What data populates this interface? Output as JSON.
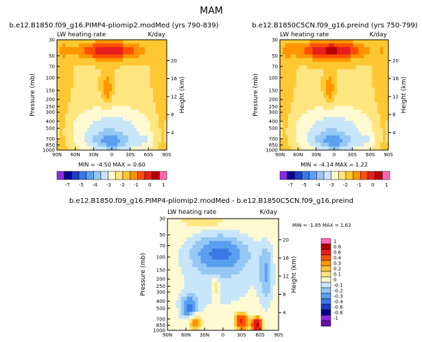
{
  "figure_title": "MAM",
  "chart_data": [
    {
      "type": "heatmap",
      "title": "b.e12.B1850.f09_g16.PIMP4-pliomip2.modMed (yrs 790-839)",
      "left_string": "LW heating rate",
      "units": "K/day",
      "ylabel": "Pressure (mb)",
      "ylabel_right": "Height (km)",
      "xticks": [
        "90N",
        "60N",
        "30N",
        "0",
        "30S",
        "60S",
        "90S"
      ],
      "yticks": [
        "30",
        "50",
        "70",
        "100",
        "150",
        "200",
        "250",
        "300",
        "400",
        "500",
        "700",
        "850",
        "1000"
      ],
      "height_ticks": [
        "20",
        "16",
        "12",
        "8",
        "4"
      ],
      "ylim": [
        1000,
        30
      ],
      "y_scale": "log",
      "min_label": "MIN =",
      "min_value": "-4.50",
      "max_label": "MAX =",
      "max_value": "0.60",
      "colorbar_levels": [
        "-7",
        "-5",
        "-4",
        "-3",
        "-2",
        "-1",
        "0",
        "1"
      ],
      "colorbar_colors": [
        "#8a2be2",
        "#00008b",
        "#1e3cc8",
        "#3c78e6",
        "#5aa0f0",
        "#96c8f5",
        "#c8e6fa",
        "#fffad2",
        "#ffe680",
        "#ffc832",
        "#ff9600",
        "#ff5000",
        "#e61e1e",
        "#b40000",
        "#ff69b4"
      ]
    },
    {
      "type": "heatmap",
      "title": "b.e12.B1850C5CN.f09_g16.preind (yrs 750-799)",
      "left_string": "LW heating rate",
      "units": "K/day",
      "ylabel": "Pressure (mb)",
      "ylabel_right": "Height (km)",
      "xticks": [
        "90N",
        "60N",
        "30N",
        "0",
        "30S",
        "60S",
        "90S"
      ],
      "yticks": [
        "30",
        "50",
        "70",
        "100",
        "150",
        "200",
        "250",
        "300",
        "400",
        "500",
        "700",
        "850",
        "1000"
      ],
      "height_ticks": [
        "20",
        "16",
        "12",
        "8",
        "4"
      ],
      "ylim": [
        1000,
        30
      ],
      "y_scale": "log",
      "min_label": "MIN =",
      "min_value": "-4.14",
      "max_label": "MAX =",
      "max_value": "1.22",
      "colorbar_levels": [
        "-7",
        "-5",
        "-4",
        "-3",
        "-2",
        "-1",
        "0",
        "1"
      ],
      "colorbar_colors": [
        "#8a2be2",
        "#00008b",
        "#1e3cc8",
        "#3c78e6",
        "#5aa0f0",
        "#96c8f5",
        "#c8e6fa",
        "#fffad2",
        "#ffe680",
        "#ffc832",
        "#ff9600",
        "#ff5000",
        "#e61e1e",
        "#b40000",
        "#ff69b4"
      ]
    },
    {
      "type": "heatmap",
      "title": "b.e12.B1850.f09_g16.PIMP4-pliomip2.modMed - b.e12.B1850C5CN.f09_g16.preind",
      "left_string": "LW heating rate",
      "units": "K/day",
      "ylabel": "Pressure (mb)",
      "ylabel_right": "Height (km)",
      "xticks": [
        "90N",
        "60N",
        "30N",
        "0",
        "30S",
        "60S",
        "90S"
      ],
      "yticks": [
        "30",
        "50",
        "70",
        "100",
        "150",
        "200",
        "250",
        "300",
        "400",
        "500",
        "700",
        "850",
        "1000"
      ],
      "height_ticks": [
        "20",
        "16",
        "12",
        "8",
        "4"
      ],
      "ylim": [
        1000,
        30
      ],
      "y_scale": "log",
      "min_label": "MIN =",
      "min_value": "-1.85",
      "max_label": "MAX =",
      "max_value": "1.63",
      "colorbar_levels": [
        "1",
        "0.8",
        "0.6",
        "0.4",
        "0.3",
        "0.2",
        "0.1",
        "0",
        "-0.1",
        "-0.2",
        "-0.3",
        "-0.4",
        "-0.6",
        "-0.8",
        "-1"
      ],
      "colorbar_colors": [
        "#ff69b4",
        "#b40000",
        "#e61e1e",
        "#ff5000",
        "#ff9600",
        "#ffc832",
        "#ffe680",
        "#fffad2",
        "#c8e6fa",
        "#96c8f5",
        "#5aa0f0",
        "#3c78e6",
        "#1e3cc8",
        "#00008b",
        "#8a2be2",
        "#6a0dad"
      ]
    }
  ]
}
